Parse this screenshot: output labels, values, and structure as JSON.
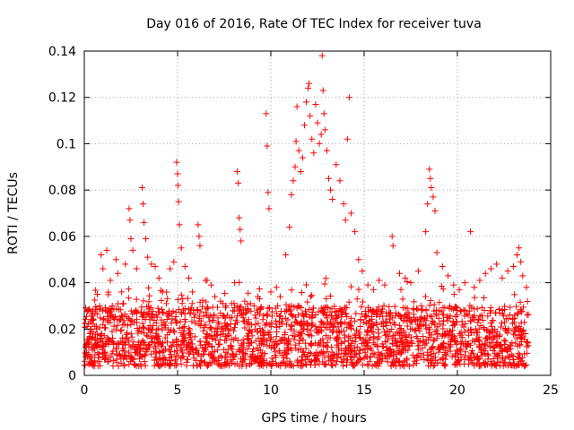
{
  "chart_data": {
    "type": "scatter",
    "title": "Day 016 of 2016, Rate Of TEC Index for receiver tuva",
    "xlabel": "GPS time / hours",
    "ylabel": "ROTI / TECUs",
    "xlim": [
      0,
      25
    ],
    "ylim": [
      0,
      0.14
    ],
    "x_ticks": [
      0,
      5,
      10,
      15,
      20,
      25
    ],
    "x_tick_labels": [
      "0",
      "5",
      "10",
      "15",
      "20",
      "25"
    ],
    "y_ticks": [
      0,
      0.02,
      0.04,
      0.06,
      0.08,
      0.1,
      0.12,
      0.14
    ],
    "y_tick_labels": [
      "0",
      "0.02",
      "0.04",
      "0.06",
      "0.08",
      "0.1",
      "0.12",
      "0.14"
    ],
    "grid": true,
    "marker": "+",
    "color": "#ff0000",
    "series": [
      {
        "points": [
          [
            0.1,
            0.012
          ],
          [
            0.3,
            0.018
          ],
          [
            0.5,
            0.024
          ],
          [
            0.7,
            0.035
          ],
          [
            0.9,
            0.052
          ],
          [
            1.0,
            0.046
          ],
          [
            1.2,
            0.054
          ],
          [
            1.4,
            0.041
          ],
          [
            1.5,
            0.03
          ],
          [
            1.7,
            0.05
          ],
          [
            1.8,
            0.044
          ],
          [
            2.0,
            0.036
          ],
          [
            2.2,
            0.048
          ],
          [
            2.4,
            0.072
          ],
          [
            2.45,
            0.067
          ],
          [
            2.5,
            0.059
          ],
          [
            2.6,
            0.054
          ],
          [
            2.8,
            0.046
          ],
          [
            3.1,
            0.081
          ],
          [
            3.15,
            0.074
          ],
          [
            3.2,
            0.066
          ],
          [
            3.3,
            0.059
          ],
          [
            3.4,
            0.051
          ],
          [
            3.6,
            0.048
          ],
          [
            3.8,
            0.047
          ],
          [
            4.0,
            0.042
          ],
          [
            4.2,
            0.036
          ],
          [
            4.4,
            0.031
          ],
          [
            4.6,
            0.046
          ],
          [
            4.8,
            0.049
          ],
          [
            4.95,
            0.092
          ],
          [
            5.0,
            0.087
          ],
          [
            5.02,
            0.082
          ],
          [
            5.05,
            0.075
          ],
          [
            5.1,
            0.065
          ],
          [
            5.2,
            0.055
          ],
          [
            5.4,
            0.047
          ],
          [
            5.6,
            0.042
          ],
          [
            5.8,
            0.036
          ],
          [
            6.1,
            0.065
          ],
          [
            6.15,
            0.06
          ],
          [
            6.2,
            0.056
          ],
          [
            6.5,
            0.041
          ],
          [
            6.8,
            0.039
          ],
          [
            7.0,
            0.034
          ],
          [
            7.3,
            0.032
          ],
          [
            7.6,
            0.03
          ],
          [
            7.9,
            0.031
          ],
          [
            8.2,
            0.088
          ],
          [
            8.25,
            0.083
          ],
          [
            8.3,
            0.068
          ],
          [
            8.35,
            0.063
          ],
          [
            8.4,
            0.058
          ],
          [
            8.6,
            0.032
          ],
          [
            8.9,
            0.031
          ],
          [
            9.1,
            0.03
          ],
          [
            9.4,
            0.033
          ],
          [
            9.75,
            0.113
          ],
          [
            9.8,
            0.099
          ],
          [
            9.85,
            0.079
          ],
          [
            9.9,
            0.072
          ],
          [
            10.0,
            0.036
          ],
          [
            10.3,
            0.038
          ],
          [
            10.5,
            0.034
          ],
          [
            10.8,
            0.052
          ],
          [
            11.0,
            0.064
          ],
          [
            11.1,
            0.078
          ],
          [
            11.2,
            0.084
          ],
          [
            11.3,
            0.09
          ],
          [
            11.35,
            0.101
          ],
          [
            11.4,
            0.116
          ],
          [
            11.5,
            0.097
          ],
          [
            11.6,
            0.088
          ],
          [
            11.7,
            0.094
          ],
          [
            11.8,
            0.108
          ],
          [
            11.9,
            0.118
          ],
          [
            12.0,
            0.124
          ],
          [
            12.05,
            0.126
          ],
          [
            12.1,
            0.112
          ],
          [
            12.2,
            0.102
          ],
          [
            12.3,
            0.096
          ],
          [
            12.4,
            0.117
          ],
          [
            12.5,
            0.109
          ],
          [
            12.6,
            0.1
          ],
          [
            12.7,
            0.104
          ],
          [
            12.75,
            0.138
          ],
          [
            12.8,
            0.123
          ],
          [
            12.85,
            0.113
          ],
          [
            12.9,
            0.106
          ],
          [
            13.0,
            0.097
          ],
          [
            13.1,
            0.085
          ],
          [
            13.2,
            0.08
          ],
          [
            13.3,
            0.076
          ],
          [
            13.5,
            0.091
          ],
          [
            13.7,
            0.084
          ],
          [
            13.9,
            0.074
          ],
          [
            14.0,
            0.067
          ],
          [
            14.1,
            0.102
          ],
          [
            14.2,
            0.12
          ],
          [
            14.3,
            0.07
          ],
          [
            14.5,
            0.062
          ],
          [
            14.7,
            0.05
          ],
          [
            14.9,
            0.045
          ],
          [
            15.2,
            0.039
          ],
          [
            15.5,
            0.037
          ],
          [
            15.8,
            0.041
          ],
          [
            16.1,
            0.039
          ],
          [
            16.5,
            0.06
          ],
          [
            16.55,
            0.056
          ],
          [
            16.9,
            0.044
          ],
          [
            17.2,
            0.042
          ],
          [
            17.5,
            0.04
          ],
          [
            17.9,
            0.045
          ],
          [
            18.3,
            0.062
          ],
          [
            18.4,
            0.074
          ],
          [
            18.5,
            0.089
          ],
          [
            18.55,
            0.085
          ],
          [
            18.6,
            0.081
          ],
          [
            18.7,
            0.077
          ],
          [
            18.8,
            0.071
          ],
          [
            18.9,
            0.053
          ],
          [
            19.2,
            0.047
          ],
          [
            19.5,
            0.043
          ],
          [
            19.8,
            0.039
          ],
          [
            20.1,
            0.037
          ],
          [
            20.4,
            0.04
          ],
          [
            20.7,
            0.062
          ],
          [
            20.9,
            0.038
          ],
          [
            21.2,
            0.041
          ],
          [
            21.5,
            0.044
          ],
          [
            21.8,
            0.046
          ],
          [
            22.1,
            0.048
          ],
          [
            22.4,
            0.042
          ],
          [
            22.7,
            0.045
          ],
          [
            23.0,
            0.047
          ],
          [
            23.2,
            0.052
          ],
          [
            23.3,
            0.055
          ],
          [
            23.4,
            0.049
          ],
          [
            23.5,
            0.043
          ],
          [
            23.7,
            0.038
          ]
        ]
      }
    ],
    "background_band": {
      "x_range": [
        0,
        23.8
      ],
      "low": 0.004,
      "high": 0.03,
      "density": 2200
    }
  }
}
